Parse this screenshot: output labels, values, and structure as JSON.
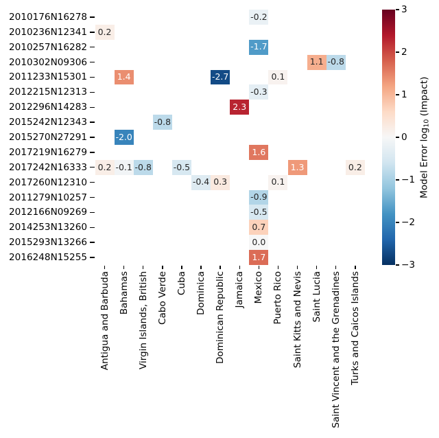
{
  "chart_data": {
    "type": "heatmap",
    "rows": [
      "2010176N16278",
      "2010236N12341",
      "2010257N16282",
      "2010302N09306",
      "2011233N15301",
      "2012215N12313",
      "2012296N14283",
      "2015242N12343",
      "2015270N27291",
      "2017219N16279",
      "2017242N16333",
      "2017260N12310",
      "2011279N10257",
      "2012166N09269",
      "2014253N13260",
      "2015293N13266",
      "2016248N15255"
    ],
    "columns": [
      "Antigua and Barbuda",
      "Bahamas",
      "Virgin Islands, British",
      "Cabo Verde",
      "Cuba",
      "Dominica",
      "Dominican Republic",
      "Jamaica",
      "Mexico",
      "Puerto Rico",
      "Saint Kitts and Nevis",
      "Saint Lucia",
      "Saint Vincent and the Grenadines",
      "Turks and Caicos Islands"
    ],
    "cells": [
      {
        "row": "2010176N16278",
        "col": "Mexico",
        "value": -0.2
      },
      {
        "row": "2010236N12341",
        "col": "Antigua and Barbuda",
        "value": 0.2
      },
      {
        "row": "2010257N16282",
        "col": "Mexico",
        "value": -1.7
      },
      {
        "row": "2010302N09306",
        "col": "Saint Lucia",
        "value": 1.1
      },
      {
        "row": "2010302N09306",
        "col": "Saint Vincent and the Grenadines",
        "value": -0.8
      },
      {
        "row": "2011233N15301",
        "col": "Bahamas",
        "value": 1.4
      },
      {
        "row": "2011233N15301",
        "col": "Dominican Republic",
        "value": -2.7
      },
      {
        "row": "2011233N15301",
        "col": "Puerto Rico",
        "value": 0.1
      },
      {
        "row": "2012215N12313",
        "col": "Mexico",
        "value": -0.3
      },
      {
        "row": "2012296N14283",
        "col": "Jamaica",
        "value": 2.3
      },
      {
        "row": "2015242N12343",
        "col": "Cabo Verde",
        "value": -0.8
      },
      {
        "row": "2015270N27291",
        "col": "Bahamas",
        "value": -2.0
      },
      {
        "row": "2017219N16279",
        "col": "Mexico",
        "value": 1.6
      },
      {
        "row": "2017242N16333",
        "col": "Antigua and Barbuda",
        "value": 0.2
      },
      {
        "row": "2017242N16333",
        "col": "Bahamas",
        "value": -0.1
      },
      {
        "row": "2017242N16333",
        "col": "Virgin Islands, British",
        "value": -0.8
      },
      {
        "row": "2017242N16333",
        "col": "Cuba",
        "value": -0.5
      },
      {
        "row": "2017242N16333",
        "col": "Saint Kitts and Nevis",
        "value": 1.3
      },
      {
        "row": "2017242N16333",
        "col": "Turks and Caicos Islands",
        "value": 0.2
      },
      {
        "row": "2017260N12310",
        "col": "Dominica",
        "value": -0.4
      },
      {
        "row": "2017260N12310",
        "col": "Dominican Republic",
        "value": 0.3
      },
      {
        "row": "2017260N12310",
        "col": "Puerto Rico",
        "value": 0.1
      },
      {
        "row": "2011279N10257",
        "col": "Mexico",
        "value": -0.9
      },
      {
        "row": "2012166N09269",
        "col": "Mexico",
        "value": -0.5
      },
      {
        "row": "2014253N13260",
        "col": "Mexico",
        "value": 0.7
      },
      {
        "row": "2015293N13266",
        "col": "Mexico",
        "value": 0.0
      },
      {
        "row": "2016248N15255",
        "col": "Mexico",
        "value": 1.7
      }
    ],
    "value_format_decimals": 1,
    "colorbar": {
      "label_prefix": "Model Error log",
      "label_sub": "10",
      "label_suffix": " (Impact)",
      "tick_labels": [
        "3",
        "2",
        "1",
        "0",
        "−1",
        "−2",
        "−3"
      ],
      "vmin": -3,
      "vmax": 3
    },
    "colormap": {
      "name": "RdBu_r",
      "stops": [
        "#053061",
        "#2166ac",
        "#4393c3",
        "#92c5de",
        "#d1e5f0",
        "#f7f7f7",
        "#fddbc7",
        "#f4a582",
        "#d6604d",
        "#b2182b",
        "#67001f"
      ]
    },
    "annot_colors": {
      "dark": "#262626",
      "light": "#ffffff"
    },
    "tick_color": "#000000",
    "layout_hints": {
      "grid": false,
      "legend": "colorbar-right"
    }
  }
}
